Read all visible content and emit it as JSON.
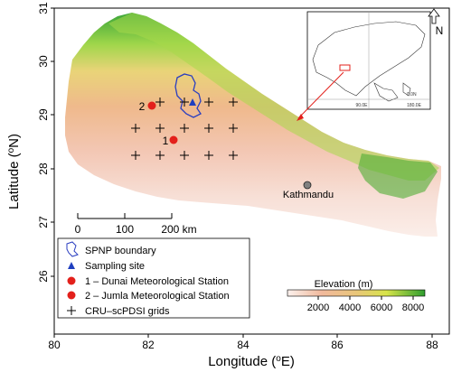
{
  "axes": {
    "x_ticks": [
      "80",
      "82",
      "84",
      "86",
      "88"
    ],
    "y_ticks": [
      "31",
      "30",
      "29",
      "28",
      "27",
      "26"
    ],
    "x_title": "Longitude (oE)",
    "y_title": "Latitude (oN)"
  },
  "labels": {
    "kathmandu": "Kathmandu",
    "station_1_num": "1",
    "station_2_num": "2"
  },
  "scale_bar": {
    "ticks": [
      "0",
      "100",
      "200 km"
    ]
  },
  "north_arrow": "N",
  "inset": {
    "lon_labels": [
      "90.0E",
      "180.0E"
    ],
    "lat_label": "0.0N"
  },
  "elevation_legend": {
    "title": "Elevation (m)",
    "ticks": [
      "2000",
      "4000",
      "6000",
      "8000"
    ]
  },
  "legend": {
    "items": [
      {
        "symbol": "polygon-outline",
        "label": "SPNP boundary"
      },
      {
        "symbol": "triangle",
        "label": "Sampling site"
      },
      {
        "symbol": "red-dot",
        "label": "1 – Dunai Meteorological Station"
      },
      {
        "symbol": "red-dot",
        "label": "2 – Jumla Meteorological Station"
      },
      {
        "symbol": "plus",
        "label": "CRU–scPDSI grids"
      }
    ]
  },
  "colors": {
    "low": "#fbe3dc",
    "mid_low": "#f2b48a",
    "mid": "#e9cf7a",
    "high": "#b9e04a",
    "peak": "#2f9e2f",
    "station": "#e3201b",
    "site": "#1f3fbf",
    "boundary": "#2a3ec0"
  }
}
